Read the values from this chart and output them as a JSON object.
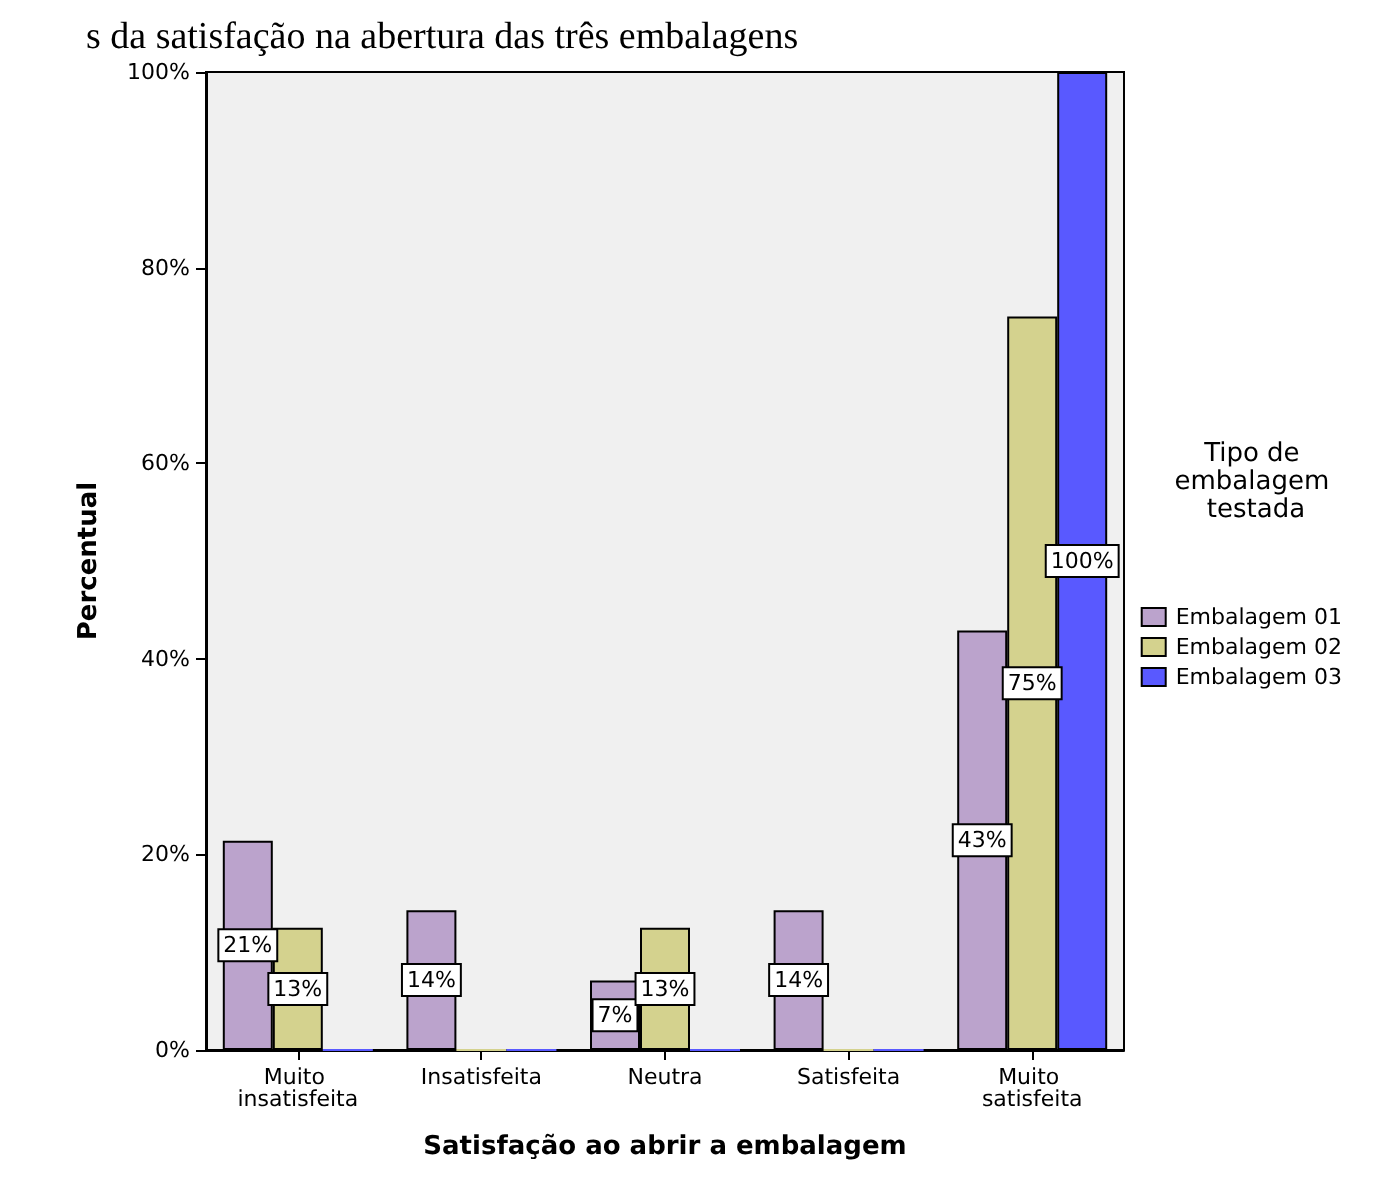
{
  "chart_data": {
    "type": "bar",
    "title": "s da satisfação na abertura das três embalagens",
    "xlabel": "Satisfação ao abrir a embalagem",
    "ylabel": "Percentual",
    "legend_title": "Tipo de embalagem testada",
    "categories": [
      "Muito insatisfeita",
      "Insatisfeita",
      "Neutra",
      "Satisfeita",
      "Muito satisfeita"
    ],
    "series": [
      {
        "name": "Embalagem 01",
        "color": "#bba3cc",
        "values": [
          21.4,
          14.3,
          7.1,
          14.3,
          42.9
        ],
        "value_labels": [
          "21%",
          "14%",
          "7%",
          "14%",
          "43%"
        ]
      },
      {
        "name": "Embalagem 02",
        "color": "#d4d28e",
        "values": [
          12.5,
          0,
          12.5,
          0,
          75
        ],
        "value_labels": [
          "13%",
          null,
          "13%",
          null,
          "75%"
        ]
      },
      {
        "name": "Embalagem 03",
        "color": "#5959ff",
        "values": [
          0,
          0,
          0,
          0,
          100
        ],
        "value_labels": [
          null,
          null,
          null,
          null,
          "100%"
        ]
      }
    ],
    "ylim": [
      0,
      100
    ],
    "yticks": [
      {
        "value": 0,
        "label": "0%"
      },
      {
        "value": 20,
        "label": "20%"
      },
      {
        "value": 40,
        "label": "40%"
      },
      {
        "value": 60,
        "label": "60%"
      },
      {
        "value": 80,
        "label": "80%"
      },
      {
        "value": 100,
        "label": "100%"
      }
    ],
    "grid": false,
    "legend": "right"
  }
}
